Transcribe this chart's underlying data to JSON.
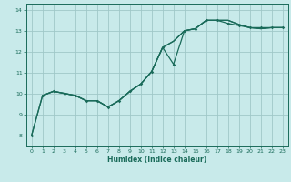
{
  "bg_color": "#c8eaea",
  "line_color": "#1a6b5a",
  "grid_color": "#a0c8c8",
  "xlabel": "Humidex (Indice chaleur)",
  "ylim": [
    7.5,
    14.3
  ],
  "xlim": [
    -0.5,
    23.5
  ],
  "yticks": [
    8,
    9,
    10,
    11,
    12,
    13,
    14
  ],
  "xticks": [
    0,
    1,
    2,
    3,
    4,
    5,
    6,
    7,
    8,
    9,
    10,
    11,
    12,
    13,
    14,
    15,
    16,
    17,
    18,
    19,
    20,
    21,
    22,
    23
  ],
  "series_markers": {
    "x": [
      0,
      1,
      2,
      3,
      4,
      5,
      6,
      7,
      8,
      9,
      10,
      11,
      12,
      13,
      14,
      15,
      16,
      17,
      18,
      19,
      20,
      21,
      22,
      23
    ],
    "y": [
      8.0,
      9.9,
      10.1,
      10.0,
      9.9,
      9.65,
      9.65,
      9.35,
      9.65,
      10.1,
      10.45,
      11.05,
      12.2,
      11.4,
      13.0,
      13.1,
      13.5,
      13.5,
      13.35,
      13.25,
      13.15,
      13.15,
      13.15,
      13.15
    ]
  },
  "series_smooth1": {
    "x": [
      0,
      1,
      2,
      3,
      4,
      5,
      6,
      7,
      8,
      9,
      10,
      11,
      12,
      13,
      14,
      15,
      16,
      17,
      18,
      19,
      20,
      21,
      22,
      23
    ],
    "y": [
      8.0,
      9.9,
      10.1,
      10.0,
      9.9,
      9.65,
      9.65,
      9.35,
      9.65,
      10.1,
      10.45,
      11.05,
      12.2,
      12.5,
      13.0,
      13.1,
      13.5,
      13.5,
      13.5,
      13.3,
      13.15,
      13.1,
      13.15,
      13.15
    ]
  },
  "series_smooth2": {
    "x": [
      1,
      2,
      3,
      4,
      5,
      6,
      7,
      8,
      9,
      10,
      11,
      12,
      13,
      14,
      15,
      16,
      17,
      18,
      19,
      20,
      21,
      22,
      23
    ],
    "y": [
      9.9,
      10.1,
      10.0,
      9.9,
      9.65,
      9.65,
      9.35,
      9.65,
      10.1,
      10.45,
      11.05,
      12.2,
      12.5,
      13.0,
      13.1,
      13.5,
      13.5,
      13.5,
      13.3,
      13.15,
      13.1,
      13.15,
      13.15
    ]
  }
}
